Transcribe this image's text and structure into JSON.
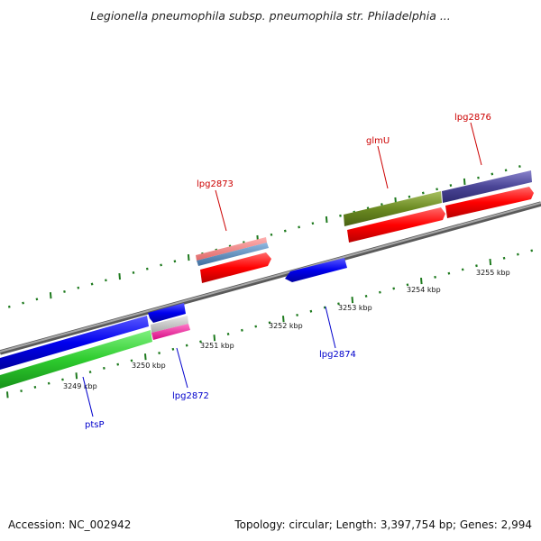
{
  "title": "Legionella pneumophila subsp. pneumophila str. Philadelphia ...",
  "footer": {
    "accession": "Accession: NC_002942",
    "summary": "Topology: circular; Length: 3,397,754 bp; Genes: 2,994"
  },
  "colors": {
    "backbone": "#888888",
    "tick": "#1e7a1e",
    "forward_label": "#cc0000",
    "reverse_label": "#0000cc"
  },
  "scale_labels": [
    "3249 kbp",
    "3250 kbp",
    "3251 kbp",
    "3252 kbp",
    "3253 kbp",
    "3254 kbp",
    "3255 kbp"
  ],
  "gene_labels": {
    "lpg2873": "lpg2873",
    "glmU": "glmU",
    "lpg2876": "lpg2876",
    "ptsP": "ptsP",
    "lpg2872": "lpg2872",
    "lpg2874": "lpg2874"
  }
}
